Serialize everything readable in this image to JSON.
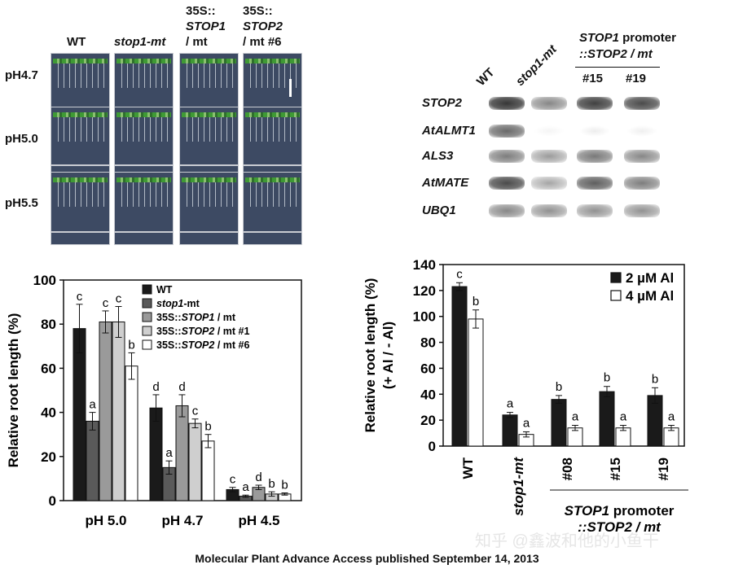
{
  "panel_a": {
    "columns": [
      {
        "line1": "WT",
        "line2": "",
        "line3": ""
      },
      {
        "line1": "stop1-mt",
        "line2": "",
        "line3": ""
      },
      {
        "line1": "35S::",
        "line2": "STOP1",
        "line3": "/ mt"
      },
      {
        "line1": "35S::",
        "line2": "STOP2",
        "line3": "/ mt #6"
      }
    ],
    "rows": [
      "pH4.7",
      "pH5.0",
      "pH5.5"
    ]
  },
  "panel_b": {
    "header_wt": "WT",
    "header_mut": "stop1-mt",
    "promoter_title_gene": "STOP1",
    "promoter_title_rest": " promoter",
    "promoter_subtitle": "::STOP2 / mt",
    "line_labels": [
      "#15",
      "#19"
    ],
    "genes": [
      "STOP2",
      "AtALMT1",
      "ALS3",
      "AtMATE",
      "UBQ1"
    ]
  },
  "chart_data": [
    {
      "type": "bar",
      "ylabel": "Relative root length (%)",
      "ylim": [
        0,
        100
      ],
      "yticks": [
        0,
        20,
        40,
        60,
        80,
        100
      ],
      "categories": [
        "pH 5.0",
        "pH 4.7",
        "pH 4.5"
      ],
      "series": [
        {
          "name": "WT",
          "color": "#1a1a1a",
          "values": [
            78,
            42,
            5
          ],
          "errors": [
            11,
            6,
            1
          ],
          "letters": [
            "c",
            "d",
            "c"
          ]
        },
        {
          "name": "stop1-mt",
          "color": "#5a5a5a",
          "values": [
            36,
            15,
            2
          ],
          "errors": [
            4,
            3,
            0.5
          ],
          "letters": [
            "a",
            "a",
            "a"
          ]
        },
        {
          "name": "35S::STOP1 / mt",
          "color": "#9a9a9a",
          "values": [
            81,
            43,
            6
          ],
          "errors": [
            5,
            5,
            1
          ],
          "letters": [
            "c",
            "d",
            "d"
          ]
        },
        {
          "name": "35S::STOP2 / mt #1",
          "color": "#cfcfcf",
          "values": [
            81,
            35,
            3
          ],
          "errors": [
            7,
            2,
            1
          ],
          "letters": [
            "c",
            "c",
            "b"
          ]
        },
        {
          "name": "35S::STOP2 / mt #6",
          "color": "#ffffff",
          "values": [
            61,
            27,
            3
          ],
          "errors": [
            6,
            3,
            0.5
          ],
          "letters": [
            "b",
            "b",
            "b"
          ]
        }
      ],
      "legend": [
        {
          "prefix": "",
          "gene": "WT",
          "suffix": "",
          "gene_italic": false
        },
        {
          "prefix": "",
          "gene": "stop1",
          "suffix": "-mt",
          "gene_italic": true
        },
        {
          "prefix": "35S::",
          "gene": "STOP1",
          "suffix": " / mt",
          "gene_italic": true
        },
        {
          "prefix": "35S::",
          "gene": "STOP2",
          "suffix": " / mt #1",
          "gene_italic": true
        },
        {
          "prefix": "35S::",
          "gene": "STOP2",
          "suffix": " / mt #6",
          "gene_italic": true
        }
      ]
    },
    {
      "type": "bar",
      "ylabel_line1": "Relative root length (%)",
      "ylabel_line2": "(+ Al / - Al)",
      "ylim": [
        0,
        140
      ],
      "yticks": [
        0,
        20,
        40,
        60,
        80,
        100,
        120,
        140
      ],
      "categories": [
        "WT",
        "stop1-mt",
        "#08",
        "#15",
        "#19"
      ],
      "series": [
        {
          "name": "2 µM Al",
          "color": "#1a1a1a",
          "values": [
            123,
            24,
            36,
            42,
            39
          ],
          "errors": [
            3,
            2,
            3,
            4,
            6
          ],
          "letters": [
            "c",
            "a",
            "b",
            "b",
            "b"
          ]
        },
        {
          "name": "4 µM Al",
          "color": "#ffffff",
          "values": [
            98,
            9,
            14,
            14,
            14
          ],
          "errors": [
            7,
            2,
            2,
            2,
            2
          ],
          "letters": [
            "b",
            "a",
            "a",
            "a",
            "a"
          ]
        }
      ],
      "group_label_gene": "STOP1",
      "group_label_rest": " promoter",
      "group_label_line2": "::STOP2 / mt"
    }
  ],
  "watermark": "知乎 @鑫波和他的小鱼干",
  "footer": "Molecular Plant Advance Access published September 14, 2013"
}
